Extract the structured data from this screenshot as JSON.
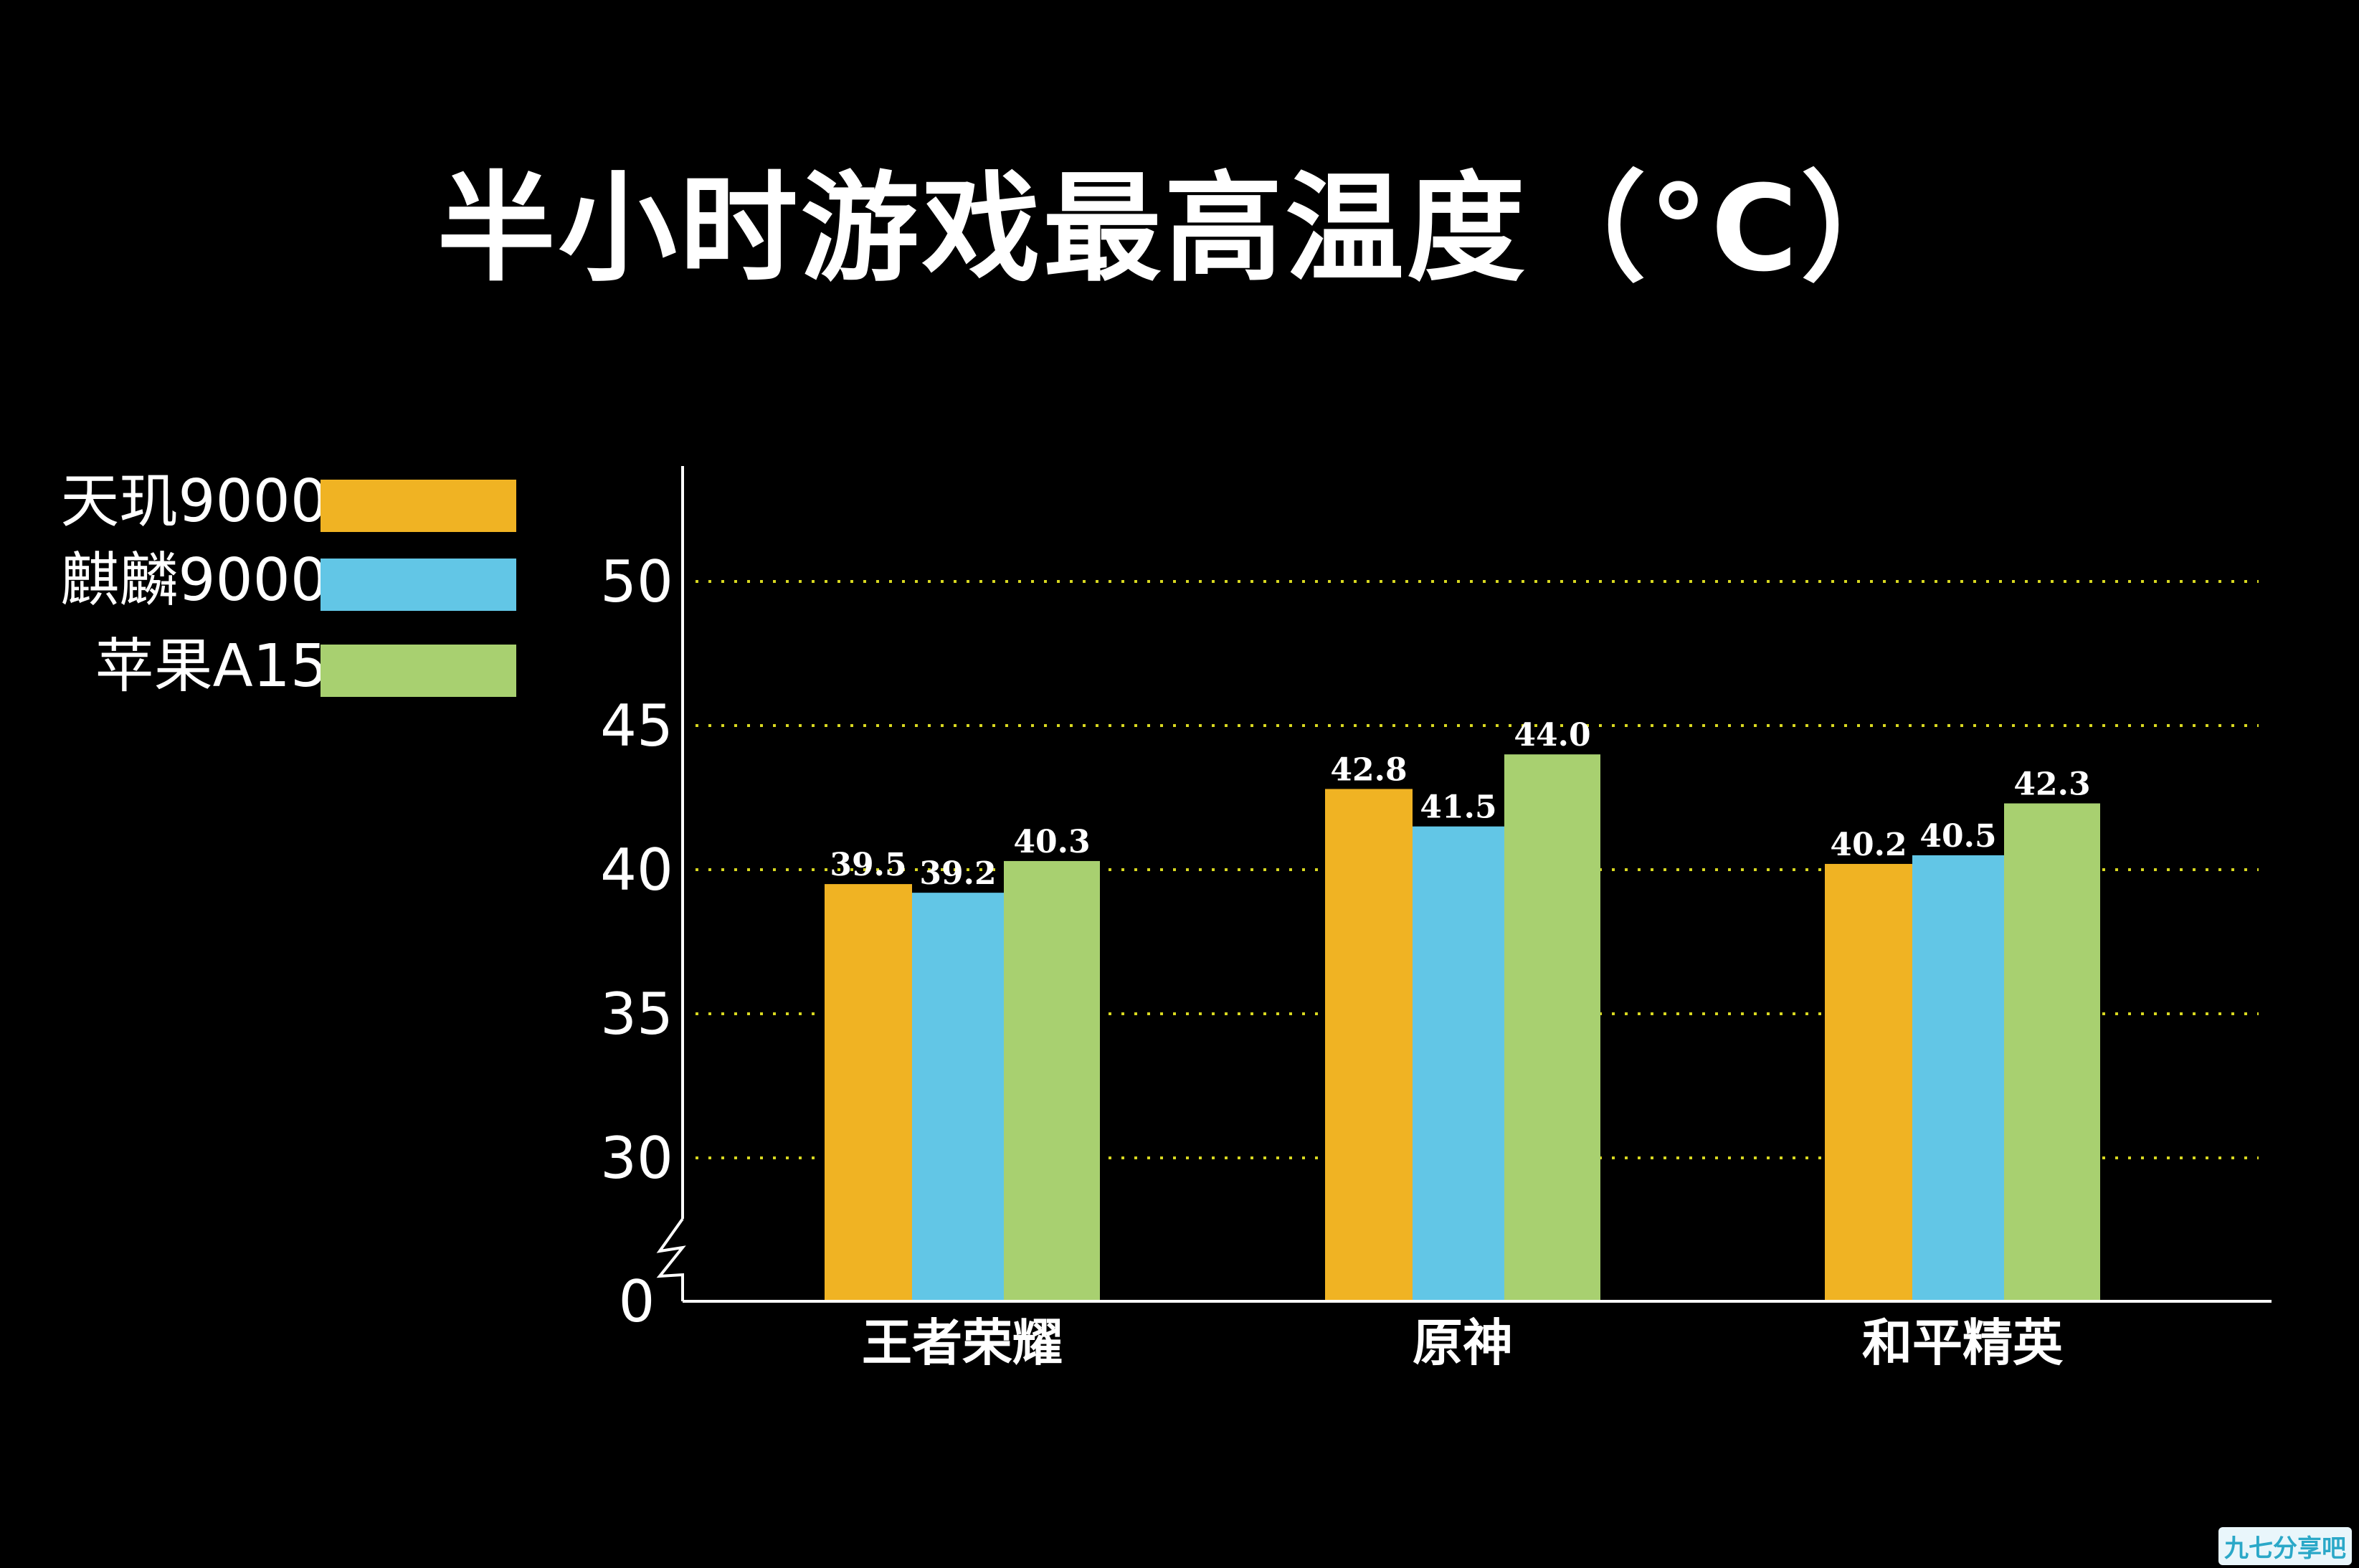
{
  "chart_data": {
    "type": "bar",
    "title": "半小时游戏最高温度（°C）",
    "categories": [
      "王者荣耀",
      "原神",
      "和平精英"
    ],
    "series": [
      {
        "name": "天玑9000",
        "color": "#f0b323",
        "values": [
          39.5,
          42.8,
          40.2
        ],
        "labels": [
          "39.5",
          "42.8",
          "40.2"
        ]
      },
      {
        "name": "麒麟9000",
        "color": "#62c6e6",
        "values": [
          39.2,
          41.5,
          40.5
        ],
        "labels": [
          "39.2",
          "41.5",
          "40.5"
        ]
      },
      {
        "name": "苹果A15",
        "color": "#a8d070",
        "values": [
          40.3,
          44.0,
          42.3
        ],
        "labels": [
          "40.3",
          "44.0",
          "42.3"
        ]
      }
    ],
    "yticks": [
      "0",
      "30",
      "35",
      "40",
      "45",
      "50"
    ],
    "ylim": [
      0,
      53
    ],
    "y_axis_break": true,
    "grid": "dotted-yellow",
    "legend_position": "left"
  },
  "watermark": "九七分享吧"
}
